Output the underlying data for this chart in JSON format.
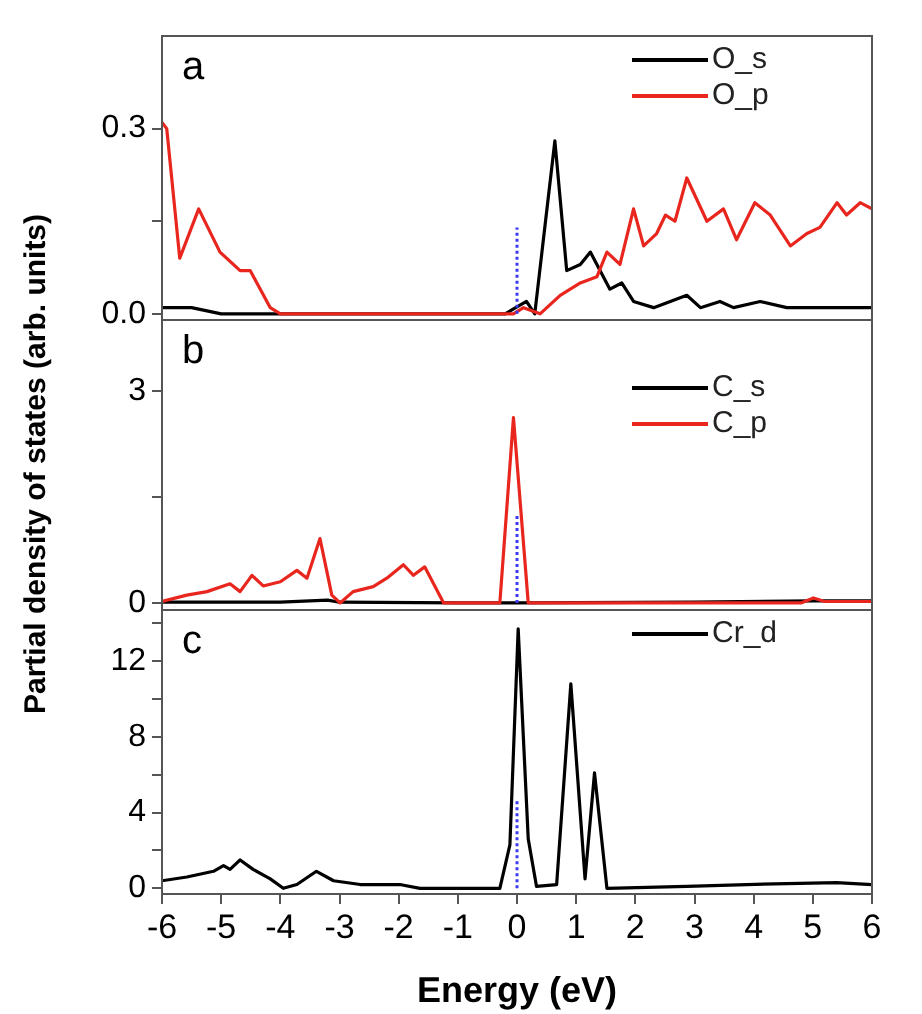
{
  "chart_data": [
    {
      "type": "line",
      "annotations": [
        "a"
      ],
      "legend": "top right",
      "xlim": [
        -6,
        6
      ],
      "xticks": [
        -6,
        -5,
        -4,
        -3,
        -2,
        -1,
        0,
        1,
        2,
        3,
        4,
        5,
        6
      ],
      "ylim": [
        -0.01,
        0.45
      ],
      "yticks": [
        {
          "value": 0,
          "label": "0.0"
        },
        {
          "value": 0.15,
          "label": null
        },
        {
          "value": 0.3,
          "label": "0.3"
        }
      ],
      "tick_labels": "y",
      "series": [
        {
          "name": "O_s",
          "color": "#000000",
          "x": [
            -6,
            -5.5,
            -5,
            -4,
            -0.2,
            0.16,
            0.3,
            0.64,
            0.84,
            1.07,
            1.24,
            1.57,
            1.77,
            1.97,
            2.31,
            2.59,
            2.87,
            3.1,
            3.43,
            3.66,
            4.11,
            4.56,
            5.46,
            6
          ],
          "values": [
            0.01,
            0.01,
            0,
            0,
            0,
            0.02,
            0,
            0.28,
            0.07,
            0.08,
            0.1,
            0.04,
            0.05,
            0.02,
            0.01,
            0.02,
            0.03,
            0.01,
            0.02,
            0.01,
            0.02,
            0.01,
            0.01,
            0.01
          ]
        },
        {
          "name": "O_p",
          "color": "#e8261e",
          "x": [
            -6,
            -5.92,
            -5.7,
            -5.38,
            -5.02,
            -4.68,
            -4.51,
            -4.17,
            -4,
            -0.06,
            0.11,
            0.39,
            0.73,
            1.07,
            1.35,
            1.52,
            1.74,
            1.97,
            2.14,
            2.36,
            2.51,
            2.67,
            2.87,
            3.21,
            3.49,
            3.71,
            4.02,
            4.28,
            4.62,
            4.9,
            5.12,
            5.41,
            5.57,
            5.8,
            6
          ],
          "values": [
            0.31,
            0.3,
            0.09,
            0.17,
            0.1,
            0.07,
            0.07,
            0.01,
            0,
            0,
            0.01,
            0,
            0.03,
            0.05,
            0.06,
            0.1,
            0.08,
            0.17,
            0.11,
            0.13,
            0.16,
            0.15,
            0.22,
            0.15,
            0.17,
            0.12,
            0.18,
            0.16,
            0.11,
            0.13,
            0.14,
            0.18,
            0.16,
            0.18,
            0.17
          ]
        },
        {
          "color": "#3a3af0",
          "line_style": "dotted",
          "x": [
            0,
            0
          ],
          "values": [
            0,
            0.14
          ]
        }
      ]
    },
    {
      "type": "line",
      "annotations": [
        "b"
      ],
      "ylabel": "Partial density of states (arb. units)",
      "legend": "top right",
      "xlim": [
        -6,
        6
      ],
      "xticks": [
        -6,
        -5,
        -4,
        -3,
        -2,
        -1,
        0,
        1,
        2,
        3,
        4,
        5,
        6
      ],
      "ylim": [
        -0.1,
        4
      ],
      "yticks": [
        0,
        {
          "value": 1.5,
          "label": null
        },
        3
      ],
      "tick_labels": "y",
      "series": [
        {
          "name": "C_s",
          "color": "#000000",
          "x": [
            -6,
            -4,
            -3.2,
            -3,
            -1,
            0,
            3,
            5,
            6
          ],
          "values": [
            0.01,
            0.01,
            0.04,
            0.01,
            0,
            0,
            0.01,
            0.03,
            0.03
          ]
        },
        {
          "name": "C_p",
          "color": "#e8261e",
          "x": [
            -6,
            -5.58,
            -5.24,
            -4.85,
            -4.68,
            -4.48,
            -4.29,
            -4,
            -3.72,
            -3.55,
            -3.33,
            -3.13,
            -2.99,
            -2.77,
            -2.43,
            -2.2,
            -1.92,
            -1.75,
            -1.56,
            -1.24,
            -0.29,
            -0.06,
            0.19,
            4.8,
            5.01,
            5.2,
            6
          ],
          "values": [
            0.02,
            0.11,
            0.16,
            0.27,
            0.16,
            0.39,
            0.24,
            0.3,
            0.46,
            0.35,
            0.91,
            0.11,
            0,
            0.16,
            0.23,
            0.35,
            0.54,
            0.39,
            0.51,
            0,
            0,
            2.62,
            0,
            0,
            0.07,
            0.02,
            0.02
          ]
        },
        {
          "color": "#3a3af0",
          "line_style": "dotted",
          "x": [
            0,
            0
          ],
          "values": [
            0,
            1.27
          ]
        }
      ]
    },
    {
      "type": "line",
      "annotations": [
        "c"
      ],
      "xlabel": "Energy (eV)",
      "legend": "top right",
      "xlim": [
        -6,
        6
      ],
      "xticks": [
        -6,
        -5,
        -4,
        -3,
        -2,
        -1,
        0,
        1,
        2,
        3,
        4,
        5,
        6
      ],
      "ylim": [
        -0.3,
        14.7
      ],
      "yticks": [
        0,
        {
          "value": 2,
          "label": null
        },
        4,
        {
          "value": 6,
          "label": null
        },
        8,
        {
          "value": 10,
          "label": null
        },
        12,
        {
          "value": 14,
          "label": null
        }
      ],
      "series": [
        {
          "name": "Cr_d",
          "color": "#000000",
          "x": [
            -6,
            -5.58,
            -5.13,
            -4.96,
            -4.85,
            -4.68,
            -4.46,
            -4.17,
            -3.95,
            -3.72,
            -3.39,
            -3.1,
            -2.65,
            -1.98,
            -1.64,
            -0.29,
            -0.12,
            0.02,
            0.19,
            0.33,
            0.67,
            0.91,
            1.15,
            1.31,
            1.52,
            2.87,
            3.88,
            5.4,
            6
          ],
          "values": [
            0.4,
            0.6,
            0.9,
            1.2,
            1,
            1.5,
            1,
            0.5,
            0,
            0.2,
            0.9,
            0.4,
            0.2,
            0.2,
            0,
            0,
            2.3,
            13.7,
            2.6,
            0.1,
            0.2,
            10.8,
            0.5,
            6.1,
            0,
            0.1,
            0.2,
            0.3,
            0.2
          ]
        },
        {
          "color": "#3a3af0",
          "line_style": "dotted",
          "x": [
            0,
            0
          ],
          "values": [
            0,
            4.7
          ]
        }
      ]
    }
  ]
}
